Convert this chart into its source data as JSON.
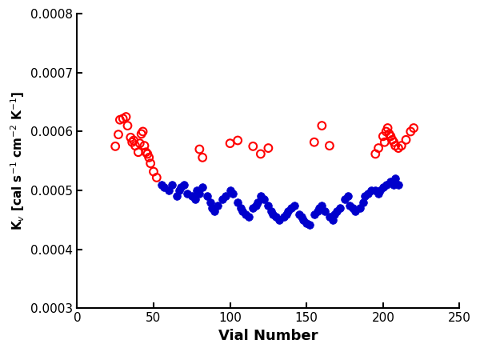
{
  "edge_x": [
    25,
    27,
    28,
    30,
    32,
    33,
    35,
    36,
    37,
    38,
    40,
    41,
    42,
    43,
    44,
    45,
    46,
    47,
    48,
    50,
    52,
    80,
    82,
    100,
    105,
    115,
    120,
    125,
    155,
    160,
    165,
    195,
    197,
    200,
    201,
    202,
    203,
    204,
    205,
    206,
    207,
    208,
    210,
    212,
    215,
    218,
    220
  ],
  "edge_y": [
    0.000575,
    0.000595,
    0.00062,
    0.000622,
    0.000625,
    0.00061,
    0.00059,
    0.000582,
    0.000585,
    0.000576,
    0.000565,
    0.00058,
    0.000596,
    0.0006,
    0.000576,
    0.000565,
    0.000562,
    0.000556,
    0.000546,
    0.000532,
    0.000522,
    0.00057,
    0.000556,
    0.00058,
    0.000585,
    0.000575,
    0.000562,
    0.000572,
    0.000582,
    0.00061,
    0.000576,
    0.000562,
    0.000572,
    0.000592,
    0.000582,
    0.0006,
    0.000606,
    0.000596,
    0.000592,
    0.000586,
    0.000582,
    0.000576,
    0.000572,
    0.000576,
    0.000586,
    0.0006,
    0.000606
  ],
  "centre_x": [
    55,
    57,
    60,
    62,
    65,
    67,
    68,
    70,
    72,
    75,
    77,
    78,
    80,
    82,
    85,
    87,
    88,
    90,
    92,
    95,
    97,
    100,
    102,
    105,
    107,
    108,
    110,
    112,
    115,
    117,
    118,
    120,
    122,
    125,
    127,
    128,
    130,
    132,
    135,
    137,
    138,
    140,
    142,
    145,
    147,
    148,
    150,
    152,
    155,
    157,
    158,
    160,
    162,
    165,
    167,
    168,
    170,
    172,
    175,
    177,
    178,
    180,
    182,
    185,
    187,
    188,
    190,
    192,
    195,
    197,
    198,
    200,
    202,
    205,
    207,
    208,
    210
  ],
  "centre_y": [
    0.00051,
    0.000505,
    0.0005,
    0.00051,
    0.00049,
    0.0005,
    0.000505,
    0.00051,
    0.000495,
    0.00049,
    0.000485,
    0.0005,
    0.000495,
    0.000505,
    0.00049,
    0.00048,
    0.00047,
    0.000465,
    0.000475,
    0.000485,
    0.00049,
    0.0005,
    0.000495,
    0.00048,
    0.00047,
    0.000465,
    0.00046,
    0.000455,
    0.00047,
    0.000475,
    0.00048,
    0.00049,
    0.000485,
    0.000475,
    0.000465,
    0.00046,
    0.000455,
    0.00045,
    0.000455,
    0.00046,
    0.000465,
    0.00047,
    0.000475,
    0.00046,
    0.000455,
    0.00045,
    0.000445,
    0.000442,
    0.00046,
    0.000465,
    0.00047,
    0.000475,
    0.000465,
    0.000455,
    0.00045,
    0.00046,
    0.000465,
    0.00047,
    0.000485,
    0.00049,
    0.000475,
    0.00047,
    0.000465,
    0.00047,
    0.00048,
    0.00049,
    0.000495,
    0.0005,
    0.0005,
    0.000495,
    0.0005,
    0.000505,
    0.00051,
    0.000515,
    0.00051,
    0.00052,
    0.00051
  ],
  "edge_color": "#FF0000",
  "centre_color": "#0000CC",
  "xlabel": "Vial Number",
  "xlim": [
    0,
    250
  ],
  "ylim": [
    0.0003,
    0.0008
  ],
  "yticks": [
    0.0003,
    0.0004,
    0.0005,
    0.0006,
    0.0007,
    0.0008
  ],
  "xticks": [
    0,
    50,
    100,
    150,
    200,
    250
  ],
  "marker_size": 49,
  "edge_linewidth": 1.5,
  "background_color": "#FFFFFF"
}
